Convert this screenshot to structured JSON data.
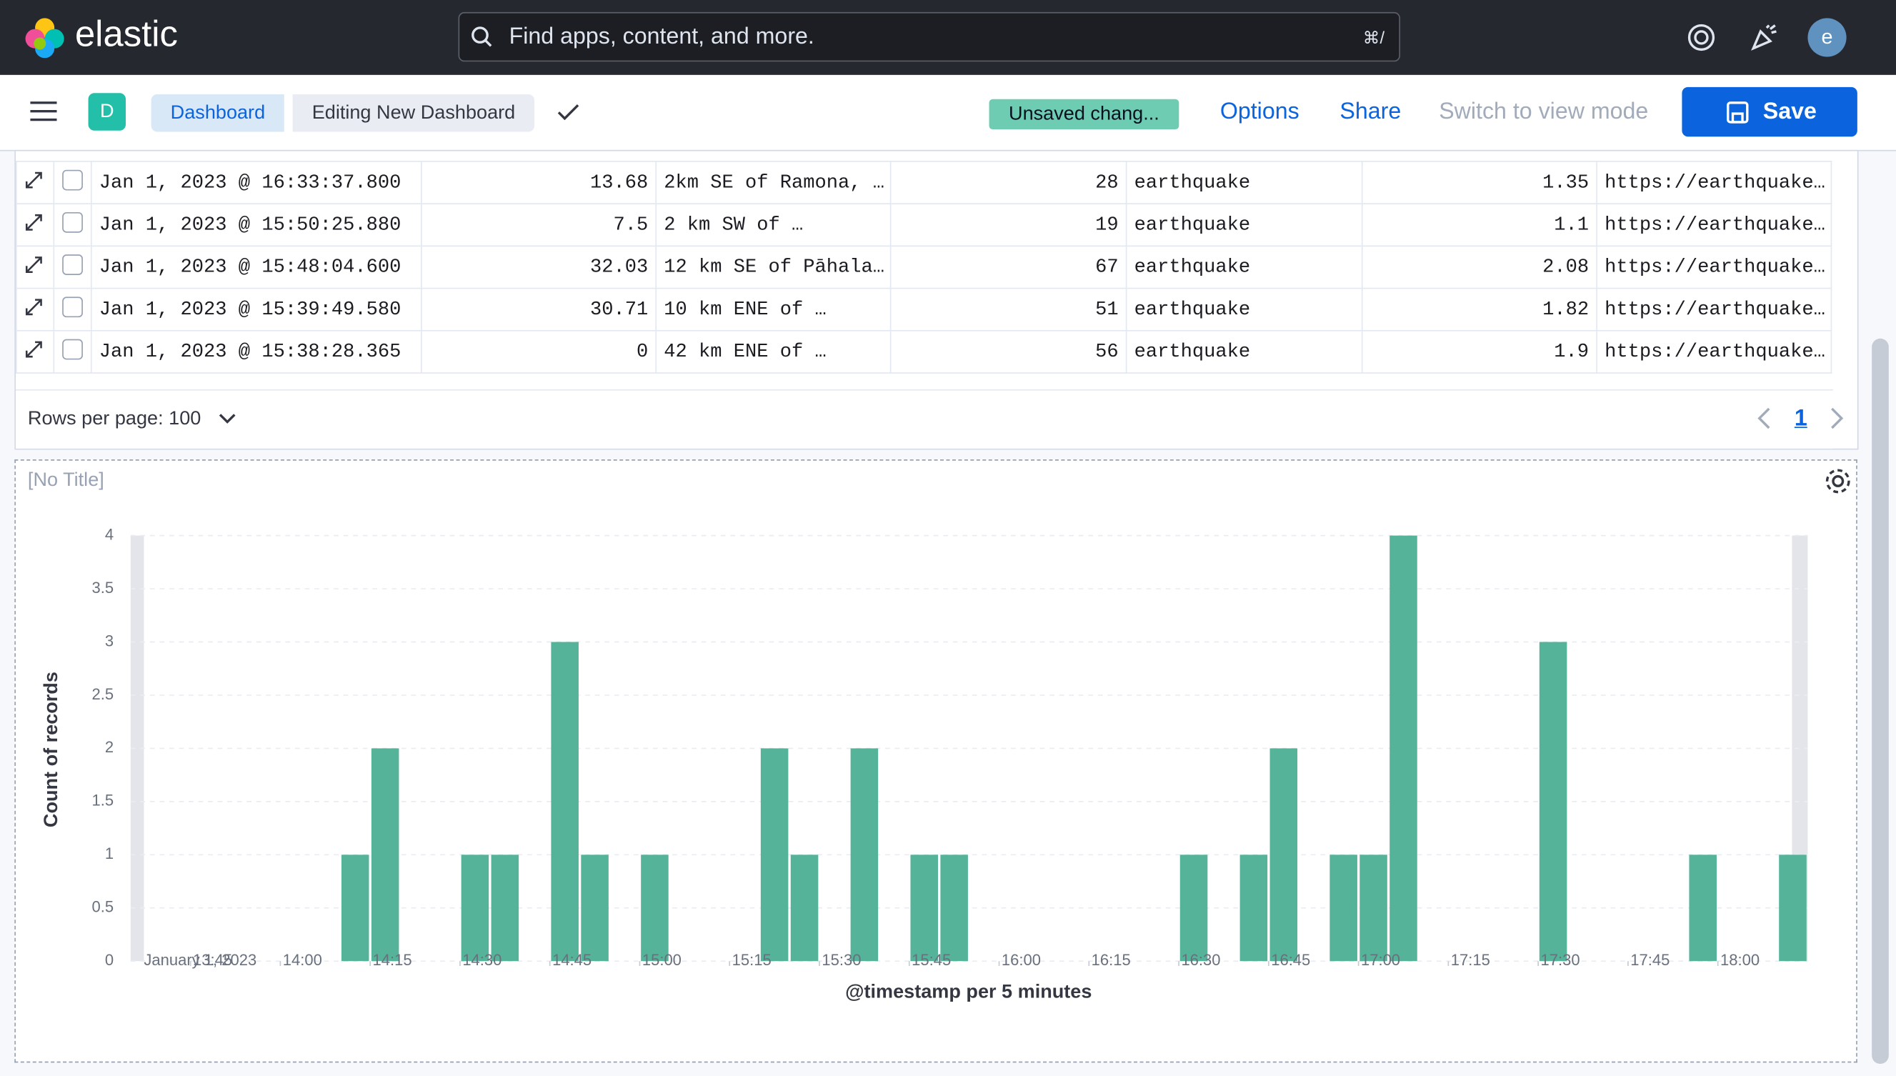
{
  "header": {
    "brand": "elastic",
    "search_placeholder": "Find apps, content, and more.",
    "shortcut": "⌘/",
    "avatar": "e"
  },
  "toolbar": {
    "space_badge": "D",
    "breadcrumbs": [
      "Dashboard",
      "Editing New Dashboard"
    ],
    "status": "Unsaved chang...",
    "actions": [
      "Options",
      "Share",
      "Switch to view mode"
    ],
    "save": "Save"
  },
  "table": {
    "rows": [
      [
        "Jan 1, 2023 @ 16:33:37.800",
        "13.68",
        "2km SE of Ramona, …",
        "28",
        "earthquake",
        "1.35",
        "https://earthquake…"
      ],
      [
        "Jan 1, 2023 @ 15:50:25.880",
        "7.5",
        "2 km SW of …",
        "19",
        "earthquake",
        "1.1",
        "https://earthquake…"
      ],
      [
        "Jan 1, 2023 @ 15:48:04.600",
        "32.03",
        "12 km SE of Pāhala…",
        "67",
        "earthquake",
        "2.08",
        "https://earthquake…"
      ],
      [
        "Jan 1, 2023 @ 15:39:49.580",
        "30.71",
        "10 km ENE of …",
        "51",
        "earthquake",
        "1.82",
        "https://earthquake…"
      ],
      [
        "Jan 1, 2023 @ 15:38:28.365",
        "0",
        "42 km ENE of …",
        "56",
        "earthquake",
        "1.9",
        "https://earthquake…"
      ]
    ],
    "rows_per_page": "Rows per page: 100",
    "page": "1"
  },
  "panel_title": "[No Title]",
  "chart_data": {
    "type": "bar",
    "x_axis_label": "@timestamp per 5 minutes",
    "y_axis_label": "Count of records",
    "date_label": "January 1, 2023",
    "x": [
      "14:10",
      "14:15",
      "14:30",
      "14:35",
      "14:45",
      "14:50",
      "15:00",
      "15:20",
      "15:25",
      "15:35",
      "15:45",
      "15:50",
      "16:30",
      "16:40",
      "16:45",
      "16:55",
      "17:00",
      "17:05",
      "17:30",
      "17:55",
      "18:10"
    ],
    "values": [
      1,
      2,
      1,
      1,
      3,
      1,
      1,
      2,
      1,
      2,
      1,
      1,
      1,
      1,
      2,
      1,
      1,
      4,
      3,
      1,
      1
    ],
    "color": "#54b399",
    "xlim": [
      "13:35",
      "18:15"
    ],
    "xticks": [
      "13:45",
      "14:00",
      "14:15",
      "14:30",
      "14:45",
      "15:00",
      "15:15",
      "15:30",
      "15:45",
      "16:00",
      "16:15",
      "16:30",
      "16:45",
      "17:00",
      "17:15",
      "17:30",
      "17:45",
      "18:00"
    ],
    "ylim": [
      0,
      4
    ],
    "yticks": [
      0,
      0.5,
      1,
      1.5,
      2,
      2.5,
      3,
      3.5,
      4
    ],
    "grid": true
  }
}
